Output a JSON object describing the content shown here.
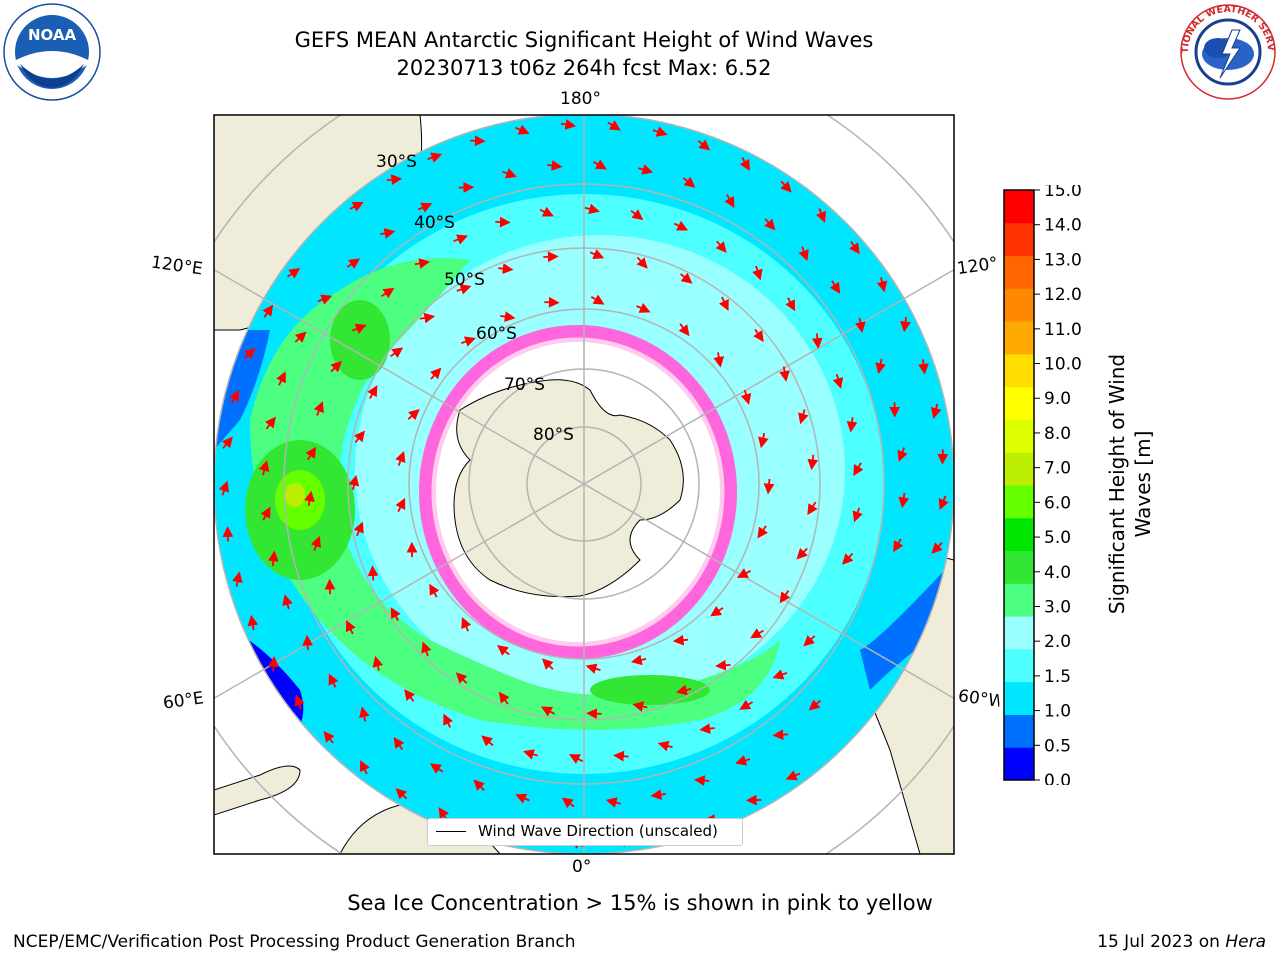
{
  "title": {
    "line1": "GEFS MEAN Antarctic Significant Height of Wind Waves",
    "line2": "20230713 t06z 264h fcst   Max: 6.52"
  },
  "map": {
    "projection": "south-polar-stereographic",
    "lon_labels": {
      "top": "180°",
      "bottom": "0°",
      "left_upper": "120°E",
      "left_lower": "60°E",
      "right_upper": "120°",
      "right_lower": "60°W"
    },
    "lat_labels": [
      "30°S",
      "40°S",
      "50°S",
      "60°S",
      "70°S",
      "80°S"
    ],
    "legend_label": "Wind Wave Direction (unscaled)",
    "colors": {
      "land": "#efedd9",
      "ice_free_outside": "#ffffff",
      "grid": "#b4b4b4",
      "arrow": "#ff0000"
    }
  },
  "colorbar": {
    "label": "Significant Height of Wind Waves [m]",
    "label_line1": "Significant Height of Wind",
    "label_line2": "Waves [m]",
    "ticks": [
      "0.0",
      "0.5",
      "1.0",
      "1.5",
      "2.0",
      "3.0",
      "4.0",
      "5.0",
      "6.0",
      "7.0",
      "8.0",
      "9.0",
      "10.0",
      "11.0",
      "12.0",
      "13.0",
      "14.0",
      "15.0"
    ],
    "colors": [
      "#0000ff",
      "#0070ff",
      "#00e6ff",
      "#4dffff",
      "#99ffff",
      "#4dff80",
      "#33e633",
      "#00e600",
      "#66ff00",
      "#bbee00",
      "#ddff00",
      "#ffff00",
      "#ffdd00",
      "#ffaa00",
      "#ff8800",
      "#ff6600",
      "#ff3300",
      "#ff0000"
    ]
  },
  "annotation": "Sea Ice Concentration > 15% is shown in pink to yellow",
  "footer": {
    "left": "NCEP/EMC/Verification Post Processing Product Generation Branch",
    "right_prefix": "15 Jul 2023 on ",
    "right_host": "Hera"
  },
  "logos": {
    "noaa": "NOAA",
    "nws": "NATIONAL WEATHER SERVICE"
  }
}
